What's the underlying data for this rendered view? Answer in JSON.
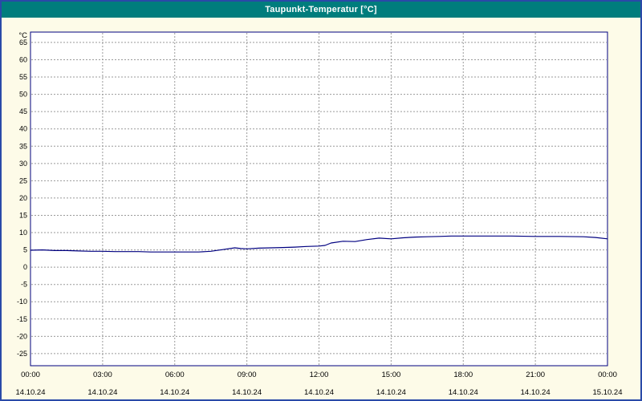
{
  "title": "Taupunkt-Temperatur [°C]",
  "colors": {
    "title_bar_bg": "#007d7d",
    "title_text": "#ffffff",
    "frame_border": "#2a4aa8",
    "chart_bg": "#fdfbe8",
    "plot_bg": "#ffffff",
    "plot_border": "#000080",
    "grid": "#9a9a9a",
    "axis_text": "#000000",
    "line": "#000080"
  },
  "chart_data": {
    "type": "line",
    "title": "Taupunkt-Temperatur [°C]",
    "xlabel": "",
    "ylabel": "°C",
    "ylim": [
      -28.5,
      68
    ],
    "xlim_hours": [
      0,
      24
    ],
    "grid": true,
    "legend_position": "none",
    "y_ticks": [
      65,
      60,
      55,
      50,
      45,
      40,
      35,
      30,
      25,
      20,
      15,
      10,
      5,
      0,
      -5,
      -10,
      -15,
      -20,
      -25
    ],
    "x_ticks": [
      {
        "hour": 0,
        "time": "00:00",
        "date": "14.10.24"
      },
      {
        "hour": 3,
        "time": "03:00",
        "date": "14.10.24"
      },
      {
        "hour": 6,
        "time": "06:00",
        "date": "14.10.24"
      },
      {
        "hour": 9,
        "time": "09:00",
        "date": "14.10.24"
      },
      {
        "hour": 12,
        "time": "12:00",
        "date": "14.10.24"
      },
      {
        "hour": 15,
        "time": "15:00",
        "date": "14.10.24"
      },
      {
        "hour": 18,
        "time": "18:00",
        "date": "14.10.24"
      },
      {
        "hour": 21,
        "time": "21:00",
        "date": "14.10.24"
      },
      {
        "hour": 24,
        "time": "00:00",
        "date": "15.10.24"
      }
    ],
    "series": [
      {
        "name": "Taupunkt-Temperatur",
        "x": [
          0,
          0.5,
          1,
          1.5,
          2,
          2.5,
          3,
          3.5,
          4,
          4.5,
          5,
          5.5,
          6,
          6.5,
          7,
          7.5,
          8,
          8.5,
          8.75,
          9,
          9.5,
          10,
          10.5,
          11,
          11.5,
          12,
          12.25,
          12.5,
          13,
          13.5,
          14,
          14.5,
          15,
          15.5,
          16,
          16.5,
          17,
          17.5,
          18,
          19,
          20,
          21,
          22,
          23,
          23.5,
          24
        ],
        "values": [
          4.9,
          5.0,
          4.8,
          4.8,
          4.7,
          4.6,
          4.6,
          4.5,
          4.5,
          4.5,
          4.4,
          4.4,
          4.4,
          4.4,
          4.4,
          4.6,
          5.1,
          5.6,
          5.4,
          5.3,
          5.5,
          5.6,
          5.7,
          5.8,
          6.0,
          6.1,
          6.3,
          7.0,
          7.5,
          7.4,
          8.0,
          8.4,
          8.2,
          8.5,
          8.7,
          8.8,
          8.9,
          9.0,
          9.0,
          9.0,
          9.0,
          8.9,
          8.9,
          8.8,
          8.6,
          8.2
        ]
      }
    ]
  }
}
